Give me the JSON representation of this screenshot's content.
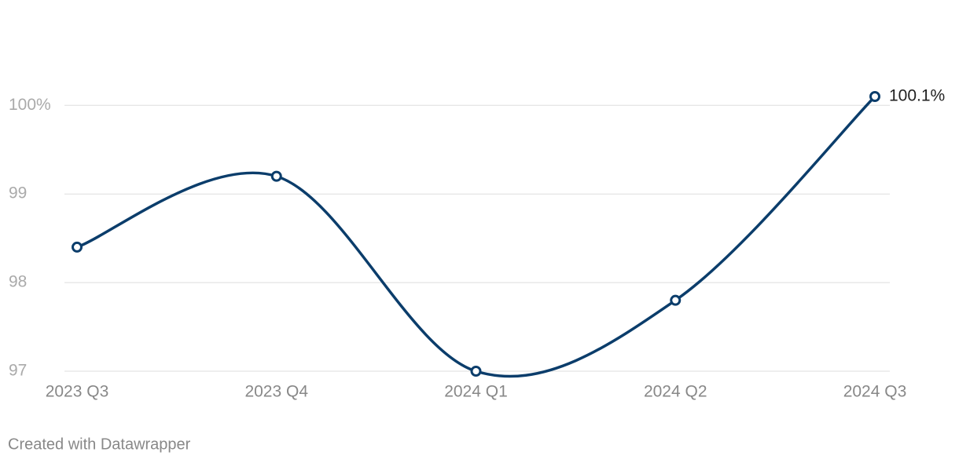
{
  "chart_data": {
    "type": "line",
    "categories": [
      "2023 Q3",
      "2023 Q4",
      "2024 Q1",
      "2024 Q2",
      "2024 Q3"
    ],
    "series": [
      {
        "color": "#0b3d6b",
        "values": [
          98.4,
          99.2,
          97.0,
          97.8,
          100.1
        ],
        "value_labels": [
          null,
          null,
          null,
          null,
          "100.1%"
        ]
      }
    ],
    "ylim": [
      97,
      100.1
    ],
    "yticks": [
      97,
      98,
      99,
      {
        "value": 100,
        "label": "100%"
      }
    ],
    "grid": true,
    "credit": "Created with Datawrapper"
  }
}
